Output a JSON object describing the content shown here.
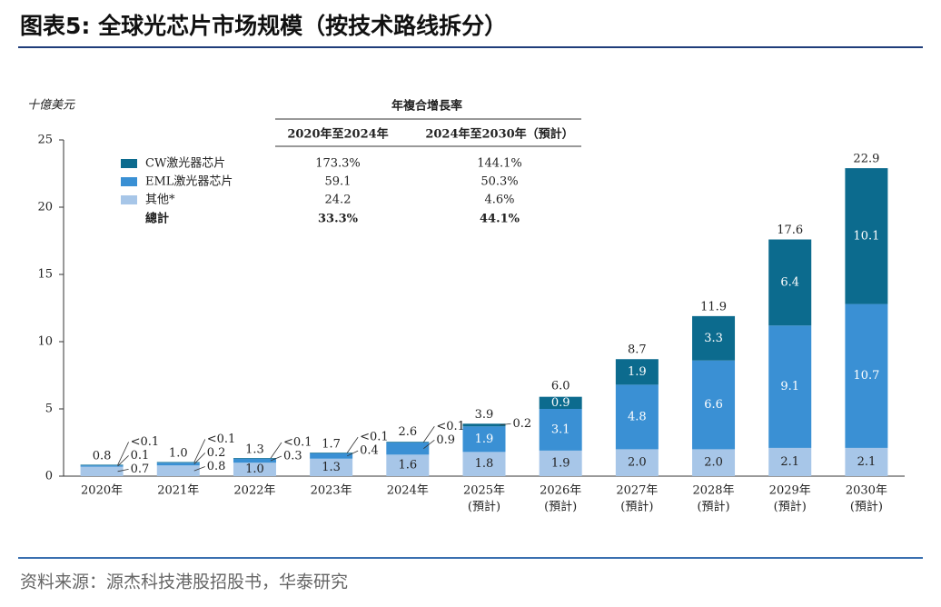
{
  "title": "图表5:  全球光芯片市场规模（按技术路线拆分）",
  "source": "资料来源：源杰科技港股招股书，华泰研究",
  "chart_data": {
    "type": "bar",
    "stacked": true,
    "y_axis_label": "十億美元",
    "categories": [
      "2020年",
      "2021年",
      "2022年",
      "2023年",
      "2024年",
      "2025年",
      "2026年",
      "2027年",
      "2028年",
      "2029年",
      "2030年"
    ],
    "category_sublabels": [
      null,
      null,
      null,
      null,
      null,
      "(預計)",
      "(預計)",
      "(預計)",
      "(預計)",
      "(預計)",
      "(預計)"
    ],
    "series": [
      {
        "name": "其他*",
        "color": "#a7c6e8",
        "values": [
          0.7,
          0.8,
          1.0,
          1.3,
          1.6,
          1.8,
          1.9,
          2.0,
          2.0,
          2.1,
          2.1
        ],
        "value_labels": [
          "0.7",
          "0.8",
          "1.0",
          "1.3",
          "1.6",
          "1.8",
          "1.9",
          "2.0",
          "2.0",
          "2.1",
          "2.1"
        ],
        "cagr": [
          "24.2",
          "4.6%"
        ]
      },
      {
        "name": "EML激光器芯片",
        "color": "#3a90d4",
        "values": [
          0.1,
          0.2,
          0.3,
          0.4,
          0.9,
          1.9,
          3.1,
          4.8,
          6.6,
          9.1,
          10.7
        ],
        "value_labels": [
          "0.1",
          "0.2",
          "0.3",
          "0.4",
          "0.9",
          "1.9",
          "3.1",
          "4.8",
          "6.6",
          "9.1",
          "10.7"
        ],
        "cagr": [
          "59.1",
          "50.3%"
        ]
      },
      {
        "name": "CW激光器芯片",
        "color": "#0c6b8e",
        "values": [
          0.05,
          0.05,
          0.05,
          0.05,
          0.05,
          0.2,
          0.9,
          1.9,
          3.3,
          6.4,
          10.1
        ],
        "value_labels": [
          "<0.1",
          "<0.1",
          "<0.1",
          "<0.1",
          "<0.1",
          "0.2",
          "0.9",
          "1.9",
          "3.3",
          "6.4",
          "10.1"
        ],
        "cagr": [
          "173.3%",
          "144.1%"
        ]
      }
    ],
    "totals": [
      0.8,
      1.0,
      1.3,
      1.7,
      2.6,
      3.9,
      6.0,
      8.7,
      11.9,
      17.6,
      22.9
    ],
    "total_labels": [
      "0.8",
      "1.0",
      "1.3",
      "1.7",
      "2.6",
      "3.9",
      "6.0",
      "8.7",
      "11.9",
      "17.6",
      "22.9"
    ],
    "cagr_table": {
      "title": "年複合增長率",
      "columns": [
        "2020年至2024年",
        "2024年至2030年（預計）"
      ],
      "total_label": "總計",
      "total": [
        "33.3%",
        "44.1%"
      ]
    },
    "ylim": [
      0,
      25
    ],
    "yticks": [
      0,
      5,
      10,
      15,
      20,
      25
    ],
    "grid": false
  }
}
